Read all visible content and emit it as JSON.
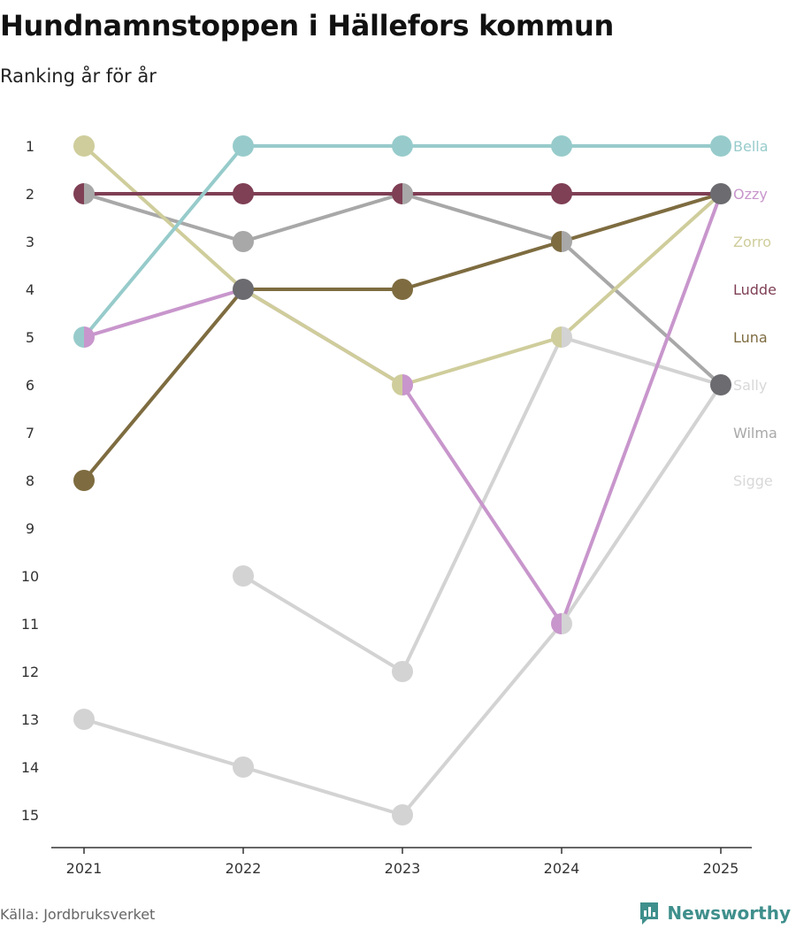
{
  "header": {
    "title": "Hundnamnstoppen i Hällefors kommun",
    "subtitle": "Ranking år för år"
  },
  "footer": {
    "source": "Källa: Jordbruksverket",
    "brand": "Newsworthy"
  },
  "chart_data": {
    "type": "line",
    "subtype": "bump",
    "title": "Hundnamnstoppen i Hällefors kommun",
    "subtitle": "Ranking år för år",
    "x": [
      "2021",
      "2022",
      "2023",
      "2024",
      "2025"
    ],
    "y_ticks": [
      1,
      2,
      3,
      4,
      5,
      6,
      7,
      8,
      9,
      10,
      11,
      12,
      13,
      14,
      15
    ],
    "ylim": [
      1,
      15
    ],
    "y_inverted": true,
    "xlabel": "",
    "ylabel": "",
    "legend": "right, end-of-line labels",
    "series": [
      {
        "name": "Sigge",
        "color": "#d3d3d3",
        "values": [
          13,
          14,
          15,
          11,
          6
        ]
      },
      {
        "name": "Wilma",
        "color": "#d3d3d3",
        "values": [
          null,
          10,
          12,
          5,
          6
        ]
      },
      {
        "name": "Sally",
        "color": "#a8a8a8",
        "values": [
          2,
          3,
          2,
          3,
          6
        ]
      },
      {
        "name": "Ozzy",
        "color": "#c896cc",
        "values": [
          5,
          4,
          6,
          11,
          2
        ]
      },
      {
        "name": "Zorro",
        "color": "#cfcd9b",
        "values": [
          1,
          4,
          6,
          5,
          2
        ]
      },
      {
        "name": "Luna",
        "color": "#7e6c40",
        "values": [
          8,
          4,
          4,
          3,
          2
        ]
      },
      {
        "name": "Ludde",
        "color": "#7f3f55",
        "values": [
          2,
          2,
          2,
          2,
          2
        ]
      },
      {
        "name": "Bella",
        "color": "#97cbcb",
        "values": [
          5,
          1,
          1,
          1,
          1
        ]
      }
    ],
    "end_labels": [
      {
        "name": "Bella",
        "color": "#97cbcb",
        "rank": 1
      },
      {
        "name": "Ozzy",
        "color": "#c896cc",
        "rank": 2
      },
      {
        "name": "Zorro",
        "color": "#cfcd9b",
        "rank": 3
      },
      {
        "name": "Ludde",
        "color": "#7f3f55",
        "rank": 4
      },
      {
        "name": "Luna",
        "color": "#7e6c40",
        "rank": 5
      },
      {
        "name": "Sally",
        "color": "#d8d8d8",
        "rank": 6
      },
      {
        "name": "Wilma",
        "color": "#a8a8a8",
        "rank": 7
      },
      {
        "name": "Sigge",
        "color": "#d8d8d8",
        "rank": 8
      }
    ],
    "tie_color": "#6b6b70",
    "axis_color": "#333333"
  }
}
